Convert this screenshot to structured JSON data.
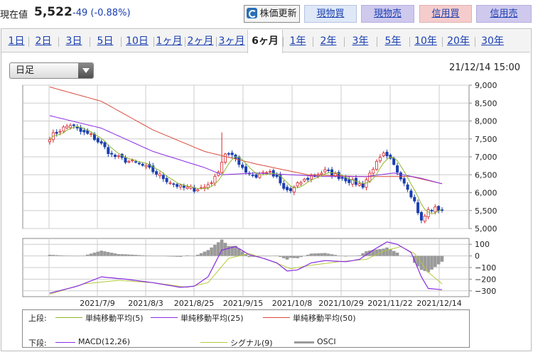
{
  "header": {
    "price_label": "現在値",
    "price_value": "5,522",
    "change_prefix": "-49 (",
    "change_pct": "-0.88%",
    "change_suffix": ")",
    "buttons": {
      "update": "株価更新",
      "spot_buy": "現物買",
      "spot_sell": "現物売",
      "margin_buy": "信用買",
      "margin_sell": "信用売"
    }
  },
  "tabs": [
    "1日",
    "2日",
    "3日",
    "5日",
    "10日",
    "1ヶ月",
    "2ヶ月",
    "3ヶ月",
    "6ヶ月",
    "1年",
    "2年",
    "3年",
    "5年",
    "10年",
    "20年",
    "30年"
  ],
  "active_tab": "6ヶ月",
  "period_select": "日足",
  "timestamp": "21/12/14 15:00",
  "legend": {
    "upper_label": "上段:",
    "lower_label": "下段:",
    "sma5": "単純移動平均(5)",
    "sma25": "単純移動平均(25)",
    "sma50": "単純移動平均(50)",
    "macd": "MACD(12,26)",
    "signal": "シグナル(9)",
    "osci": "OSCI"
  },
  "colors": {
    "sma5": "#8db82e",
    "sma25": "#8a2be2",
    "sma50": "#d84a3a",
    "macd": "#8a2be2",
    "signal": "#b5c93a",
    "osci": "#9a9a9a",
    "candle_up": "#d8262d",
    "candle_down": "#1a3fb0"
  },
  "chart_data": [
    {
      "type": "candlestick",
      "ylim": [
        5000,
        9000
      ],
      "y_ticks": [
        "9,000",
        "8,500",
        "8,000",
        "7,500",
        "7,000",
        "6,500",
        "6,000",
        "5,500",
        "5,000"
      ],
      "y_tick_values": [
        9000,
        8500,
        8000,
        7500,
        7000,
        6500,
        6000,
        5500,
        5000
      ],
      "x_labels": [
        "2021/7/9",
        "2021/8/3",
        "2021/8/25",
        "2021/9/15",
        "2021/10/8",
        "2021/10/29",
        "2021/11/22",
        "2021/12/14"
      ],
      "close_anchors": [
        [
          0,
          7550
        ],
        [
          3,
          7750
        ],
        [
          6,
          7900
        ],
        [
          9,
          7700
        ],
        [
          12,
          7600
        ],
        [
          15,
          7350
        ],
        [
          18,
          7050
        ],
        [
          22,
          6900
        ],
        [
          26,
          6800
        ],
        [
          30,
          6600
        ],
        [
          34,
          6350
        ],
        [
          38,
          6150
        ],
        [
          42,
          6100
        ],
        [
          45,
          6150
        ],
        [
          48,
          6400
        ],
        [
          51,
          7100
        ],
        [
          54,
          6950
        ],
        [
          57,
          6600
        ],
        [
          60,
          6450
        ],
        [
          63,
          6600
        ],
        [
          66,
          6400
        ],
        [
          68,
          6100
        ],
        [
          70,
          6050
        ],
        [
          73,
          6300
        ],
        [
          76,
          6450
        ],
        [
          80,
          6600
        ],
        [
          84,
          6450
        ],
        [
          88,
          6300
        ],
        [
          91,
          6200
        ],
        [
          94,
          6700
        ],
        [
          97,
          7050
        ],
        [
          99,
          6900
        ],
        [
          101,
          6600
        ],
        [
          104,
          6150
        ],
        [
          106,
          5750
        ],
        [
          108,
          5200
        ],
        [
          110,
          5500
        ],
        [
          112,
          5550
        ],
        [
          114,
          5522
        ]
      ],
      "spike": {
        "index": 50,
        "high": 7680
      },
      "series": [
        {
          "name": "単純移動平均(50)",
          "anchors": [
            [
              0,
              8950
            ],
            [
              15,
              8550
            ],
            [
              30,
              7750
            ],
            [
              45,
              7150
            ],
            [
              60,
              6800
            ],
            [
              75,
              6500
            ],
            [
              90,
              6450
            ],
            [
              105,
              6450
            ],
            [
              114,
              6250
            ]
          ]
        },
        {
          "name": "単純移動平均(25)",
          "anchors": [
            [
              0,
              8150
            ],
            [
              15,
              7800
            ],
            [
              30,
              7150
            ],
            [
              45,
              6700
            ],
            [
              50,
              6500
            ],
            [
              60,
              6550
            ],
            [
              70,
              6500
            ],
            [
              80,
              6450
            ],
            [
              92,
              6450
            ],
            [
              100,
              6550
            ],
            [
              108,
              6400
            ],
            [
              114,
              6250
            ]
          ]
        }
      ]
    },
    {
      "type": "macd",
      "ylim": [
        -350,
        150
      ],
      "y_ticks": [
        "100",
        "0",
        "−100",
        "−200",
        "−300"
      ],
      "y_tick_values": [
        100,
        0,
        -100,
        -200,
        -300
      ],
      "series": [
        {
          "name": "MACD(12,26)",
          "anchors": [
            [
              0,
              -320
            ],
            [
              8,
              -260
            ],
            [
              15,
              -180
            ],
            [
              22,
              -200
            ],
            [
              30,
              -230
            ],
            [
              38,
              -270
            ],
            [
              42,
              -260
            ],
            [
              46,
              -180
            ],
            [
              50,
              50
            ],
            [
              54,
              80
            ],
            [
              58,
              10
            ],
            [
              62,
              -20
            ],
            [
              66,
              -60
            ],
            [
              69,
              -130
            ],
            [
              72,
              -120
            ],
            [
              76,
              -60
            ],
            [
              80,
              -40
            ],
            [
              86,
              -50
            ],
            [
              90,
              -30
            ],
            [
              94,
              50
            ],
            [
              98,
              120
            ],
            [
              101,
              100
            ],
            [
              105,
              30
            ],
            [
              108,
              -180
            ],
            [
              110,
              -280
            ],
            [
              114,
              -290
            ]
          ]
        },
        {
          "name": "シグナル(9)",
          "anchors": [
            [
              0,
              -330
            ],
            [
              10,
              -240
            ],
            [
              20,
              -210
            ],
            [
              30,
              -230
            ],
            [
              40,
              -270
            ],
            [
              46,
              -230
            ],
            [
              52,
              -20
            ],
            [
              58,
              20
            ],
            [
              64,
              -40
            ],
            [
              70,
              -110
            ],
            [
              76,
              -80
            ],
            [
              84,
              -50
            ],
            [
              92,
              -30
            ],
            [
              97,
              40
            ],
            [
              102,
              80
            ],
            [
              106,
              20
            ],
            [
              110,
              -140
            ],
            [
              114,
              -240
            ]
          ]
        }
      ]
    }
  ]
}
